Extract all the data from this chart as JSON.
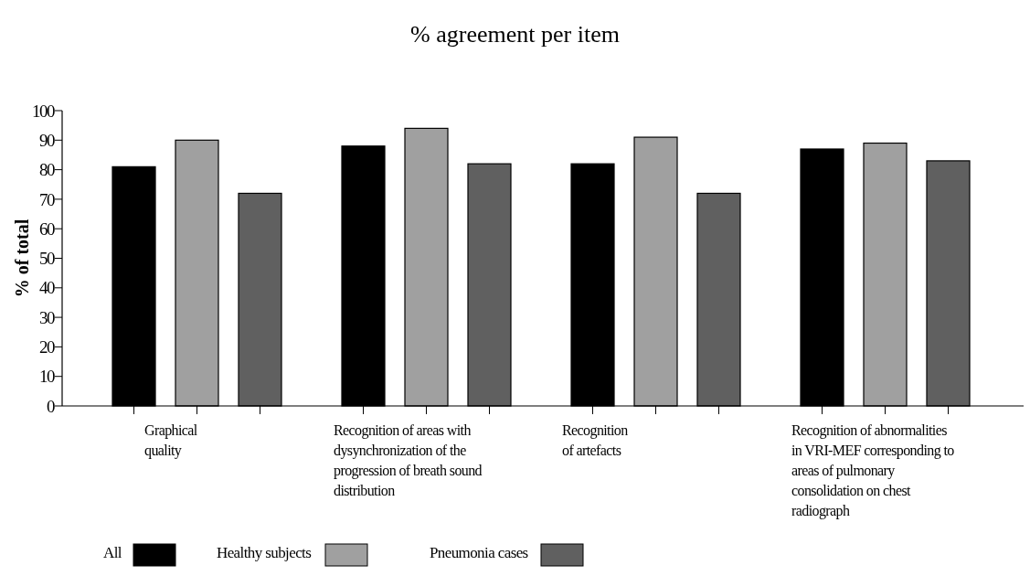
{
  "chart_data": {
    "type": "bar",
    "title": "% agreement per item",
    "ylabel": "% of total",
    "categories": [
      "Graphical quality",
      "Recognition of areas with dysynchronization of the progression of breath sound distribution",
      "Recognition of artefacts",
      "Recognition of abnormalities in VRI-MEF corresponding to areas of pulmonary consolidation on chest radiograph"
    ],
    "series": [
      {
        "name": "All",
        "color": "#000000",
        "values": [
          81,
          88,
          82,
          87
        ]
      },
      {
        "name": "Healthy subjects",
        "color": "#a0a0a0",
        "values": [
          90,
          94,
          91,
          89
        ]
      },
      {
        "name": "Pneumonia cases",
        "color": "#606060",
        "values": [
          72,
          82,
          72,
          83
        ]
      }
    ],
    "ylim": [
      0,
      100
    ],
    "yticks": [
      0,
      10,
      20,
      30,
      40,
      50,
      60,
      70,
      80,
      90,
      100
    ],
    "grid": false,
    "legend": "bottom left"
  }
}
